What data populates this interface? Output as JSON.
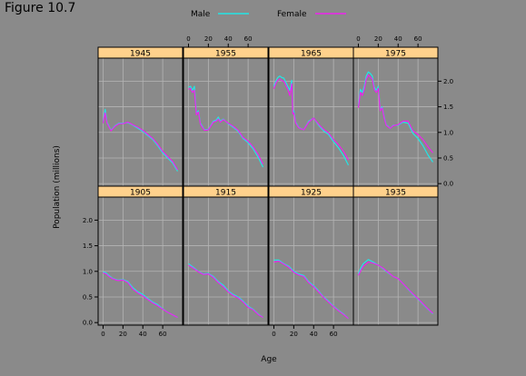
{
  "figure": {
    "title": "Figure 10.7"
  },
  "chart_data": {
    "type": "line",
    "xlabel": "Age",
    "ylabel": "Population (millions)",
    "xlim": [
      -5,
      80
    ],
    "ylim": [
      -0.05,
      2.45
    ],
    "x_ticks": [
      0,
      20,
      40,
      60
    ],
    "y_ticks": [
      0.0,
      0.5,
      1.0,
      1.5,
      2.0
    ],
    "y_tick_labels": [
      "0.0",
      "0.5",
      "1.0",
      "1.5",
      "2.0"
    ],
    "grid": true,
    "layout": {
      "rows": 2,
      "cols": 4
    },
    "legend": {
      "placement": "top",
      "entries": [
        {
          "label": "Male",
          "color": "#22e6e6"
        },
        {
          "label": "Female",
          "color": "#ee22ee"
        }
      ]
    },
    "colors": {
      "panel_bg": "#8a8a8a",
      "strip": "#ffd18c",
      "grid": "#b4b4b4"
    },
    "panels": [
      {
        "year": "1945",
        "series": [
          {
            "name": "Male",
            "x": [
              0,
              2,
              4,
              8,
              12,
              16,
              20,
              25,
              30,
              35,
              40,
              45,
              50,
              55,
              60,
              65,
              70,
              75
            ],
            "y": [
              1.2,
              1.45,
              1.2,
              1.04,
              1.13,
              1.18,
              1.18,
              1.19,
              1.14,
              1.08,
              1.02,
              0.94,
              0.86,
              0.74,
              0.6,
              0.5,
              0.4,
              0.24
            ]
          },
          {
            "name": "Female",
            "x": [
              0,
              2,
              4,
              8,
              12,
              16,
              20,
              25,
              30,
              35,
              40,
              45,
              50,
              55,
              60,
              65,
              70,
              75
            ],
            "y": [
              1.18,
              1.38,
              1.18,
              1.03,
              1.12,
              1.17,
              1.17,
              1.2,
              1.15,
              1.1,
              1.04,
              0.96,
              0.88,
              0.77,
              0.63,
              0.53,
              0.43,
              0.27
            ]
          }
        ]
      },
      {
        "year": "1955",
        "series": [
          {
            "name": "Male",
            "x": [
              0,
              2,
              4,
              6,
              8,
              10,
              12,
              16,
              20,
              25,
              28,
              30,
              32,
              35,
              40,
              45,
              50,
              55,
              60,
              65,
              70,
              75
            ],
            "y": [
              1.88,
              1.9,
              1.82,
              1.9,
              1.38,
              1.42,
              1.18,
              1.05,
              1.06,
              1.22,
              1.24,
              1.3,
              1.22,
              1.26,
              1.17,
              1.1,
              1.02,
              0.88,
              0.8,
              0.68,
              0.52,
              0.32
            ]
          },
          {
            "name": "Female",
            "x": [
              0,
              2,
              4,
              6,
              8,
              10,
              12,
              16,
              20,
              25,
              28,
              30,
              32,
              35,
              40,
              45,
              50,
              55,
              60,
              65,
              70,
              75
            ],
            "y": [
              1.84,
              1.86,
              1.78,
              1.82,
              1.34,
              1.4,
              1.16,
              1.04,
              1.05,
              1.2,
              1.22,
              1.26,
              1.2,
              1.25,
              1.18,
              1.12,
              1.04,
              0.9,
              0.83,
              0.72,
              0.57,
              0.38
            ]
          }
        ]
      },
      {
        "year": "1965",
        "series": [
          {
            "name": "Male",
            "x": [
              0,
              2,
              4,
              6,
              8,
              10,
              12,
              14,
              16,
              18,
              19,
              20,
              22,
              25,
              30,
              35,
              40,
              45,
              50,
              55,
              60,
              65,
              70,
              75
            ],
            "y": [
              1.9,
              2.0,
              2.07,
              2.1,
              2.07,
              2.06,
              1.98,
              1.9,
              1.82,
              2.02,
              1.42,
              1.42,
              1.2,
              1.1,
              1.05,
              1.22,
              1.28,
              1.14,
              1.03,
              0.96,
              0.82,
              0.7,
              0.55,
              0.36
            ]
          },
          {
            "name": "Female",
            "x": [
              0,
              2,
              4,
              6,
              8,
              10,
              12,
              14,
              16,
              18,
              19,
              20,
              22,
              25,
              30,
              35,
              40,
              45,
              50,
              55,
              60,
              65,
              70,
              75
            ],
            "y": [
              1.85,
              1.96,
              2.02,
              2.04,
              2.01,
              2.0,
              1.92,
              1.84,
              1.72,
              1.95,
              1.36,
              1.38,
              1.18,
              1.09,
              1.05,
              1.2,
              1.28,
              1.16,
              1.06,
              0.99,
              0.86,
              0.76,
              0.63,
              0.46
            ]
          }
        ]
      },
      {
        "year": "1975",
        "series": [
          {
            "name": "Male",
            "x": [
              0,
              2,
              4,
              6,
              8,
              10,
              12,
              14,
              16,
              18,
              20,
              22,
              24,
              26,
              28,
              30,
              32,
              35,
              40,
              45,
              50,
              55,
              60,
              65,
              70,
              75
            ],
            "y": [
              1.52,
              1.84,
              1.78,
              1.9,
              2.1,
              2.18,
              2.15,
              2.1,
              1.88,
              1.82,
              1.9,
              1.45,
              1.5,
              1.3,
              1.15,
              1.12,
              1.08,
              1.14,
              1.14,
              1.2,
              1.18,
              0.98,
              0.88,
              0.74,
              0.56,
              0.42
            ]
          },
          {
            "name": "Female",
            "x": [
              0,
              2,
              4,
              6,
              8,
              10,
              12,
              14,
              16,
              18,
              20,
              22,
              24,
              26,
              28,
              30,
              32,
              35,
              40,
              45,
              50,
              55,
              60,
              65,
              70,
              75
            ],
            "y": [
              1.48,
              1.78,
              1.72,
              1.84,
              2.04,
              2.12,
              2.08,
              2.04,
              1.84,
              1.78,
              1.86,
              1.42,
              1.48,
              1.28,
              1.14,
              1.11,
              1.08,
              1.13,
              1.15,
              1.22,
              1.22,
              1.03,
              0.96,
              0.86,
              0.72,
              0.6
            ]
          }
        ]
      },
      {
        "year": "1905",
        "series": [
          {
            "name": "Male",
            "x": [
              0,
              3,
              6,
              10,
              15,
              20,
              25,
              30,
              35,
              40,
              45,
              50,
              55,
              60,
              65,
              70,
              75
            ],
            "y": [
              0.99,
              0.97,
              0.92,
              0.86,
              0.83,
              0.84,
              0.8,
              0.68,
              0.6,
              0.55,
              0.47,
              0.4,
              0.35,
              0.27,
              0.2,
              0.15,
              0.1
            ]
          },
          {
            "name": "Female",
            "x": [
              0,
              3,
              6,
              10,
              15,
              20,
              25,
              30,
              35,
              40,
              45,
              50,
              55,
              60,
              65,
              70,
              75
            ],
            "y": [
              0.97,
              0.95,
              0.9,
              0.85,
              0.82,
              0.83,
              0.78,
              0.65,
              0.58,
              0.52,
              0.45,
              0.38,
              0.33,
              0.26,
              0.2,
              0.15,
              0.1
            ]
          }
        ]
      },
      {
        "year": "1915",
        "series": [
          {
            "name": "Male",
            "x": [
              0,
              5,
              10,
              15,
              20,
              25,
              30,
              35,
              40,
              45,
              50,
              55,
              60,
              65,
              70,
              75
            ],
            "y": [
              1.15,
              1.08,
              1.0,
              0.95,
              0.96,
              0.9,
              0.8,
              0.73,
              0.62,
              0.55,
              0.5,
              0.42,
              0.32,
              0.26,
              0.17,
              0.1
            ]
          },
          {
            "name": "Female",
            "x": [
              0,
              5,
              10,
              15,
              20,
              25,
              30,
              35,
              40,
              45,
              50,
              55,
              60,
              65,
              70,
              75
            ],
            "y": [
              1.12,
              1.06,
              0.99,
              0.94,
              0.95,
              0.88,
              0.78,
              0.7,
              0.6,
              0.53,
              0.48,
              0.4,
              0.3,
              0.25,
              0.16,
              0.1
            ]
          }
        ]
      },
      {
        "year": "1925",
        "series": [
          {
            "name": "Male",
            "x": [
              0,
              5,
              10,
              15,
              20,
              25,
              30,
              35,
              40,
              45,
              50,
              55,
              60,
              65,
              70,
              75
            ],
            "y": [
              1.22,
              1.22,
              1.15,
              1.1,
              1.0,
              0.95,
              0.92,
              0.8,
              0.72,
              0.62,
              0.5,
              0.42,
              0.32,
              0.24,
              0.17,
              0.08
            ]
          },
          {
            "name": "Female",
            "x": [
              0,
              5,
              10,
              15,
              20,
              25,
              30,
              35,
              40,
              45,
              50,
              55,
              60,
              65,
              70,
              75
            ],
            "y": [
              1.18,
              1.2,
              1.14,
              1.08,
              0.98,
              0.93,
              0.9,
              0.78,
              0.7,
              0.6,
              0.49,
              0.4,
              0.31,
              0.23,
              0.16,
              0.08
            ]
          }
        ]
      },
      {
        "year": "1935",
        "series": [
          {
            "name": "Male",
            "x": [
              0,
              2,
              5,
              10,
              15,
              20,
              25,
              30,
              35,
              40,
              45,
              50,
              55,
              60,
              65,
              70,
              75
            ],
            "y": [
              0.95,
              1.05,
              1.15,
              1.23,
              1.18,
              1.12,
              1.05,
              0.97,
              0.9,
              0.86,
              0.76,
              0.65,
              0.55,
              0.46,
              0.36,
              0.26,
              0.17
            ]
          },
          {
            "name": "Female",
            "x": [
              0,
              2,
              5,
              10,
              15,
              20,
              25,
              30,
              35,
              40,
              45,
              50,
              55,
              60,
              65,
              70,
              75
            ],
            "y": [
              0.92,
              1.0,
              1.1,
              1.18,
              1.16,
              1.12,
              1.06,
              0.98,
              0.9,
              0.86,
              0.76,
              0.66,
              0.56,
              0.47,
              0.37,
              0.27,
              0.18
            ]
          }
        ]
      }
    ]
  }
}
